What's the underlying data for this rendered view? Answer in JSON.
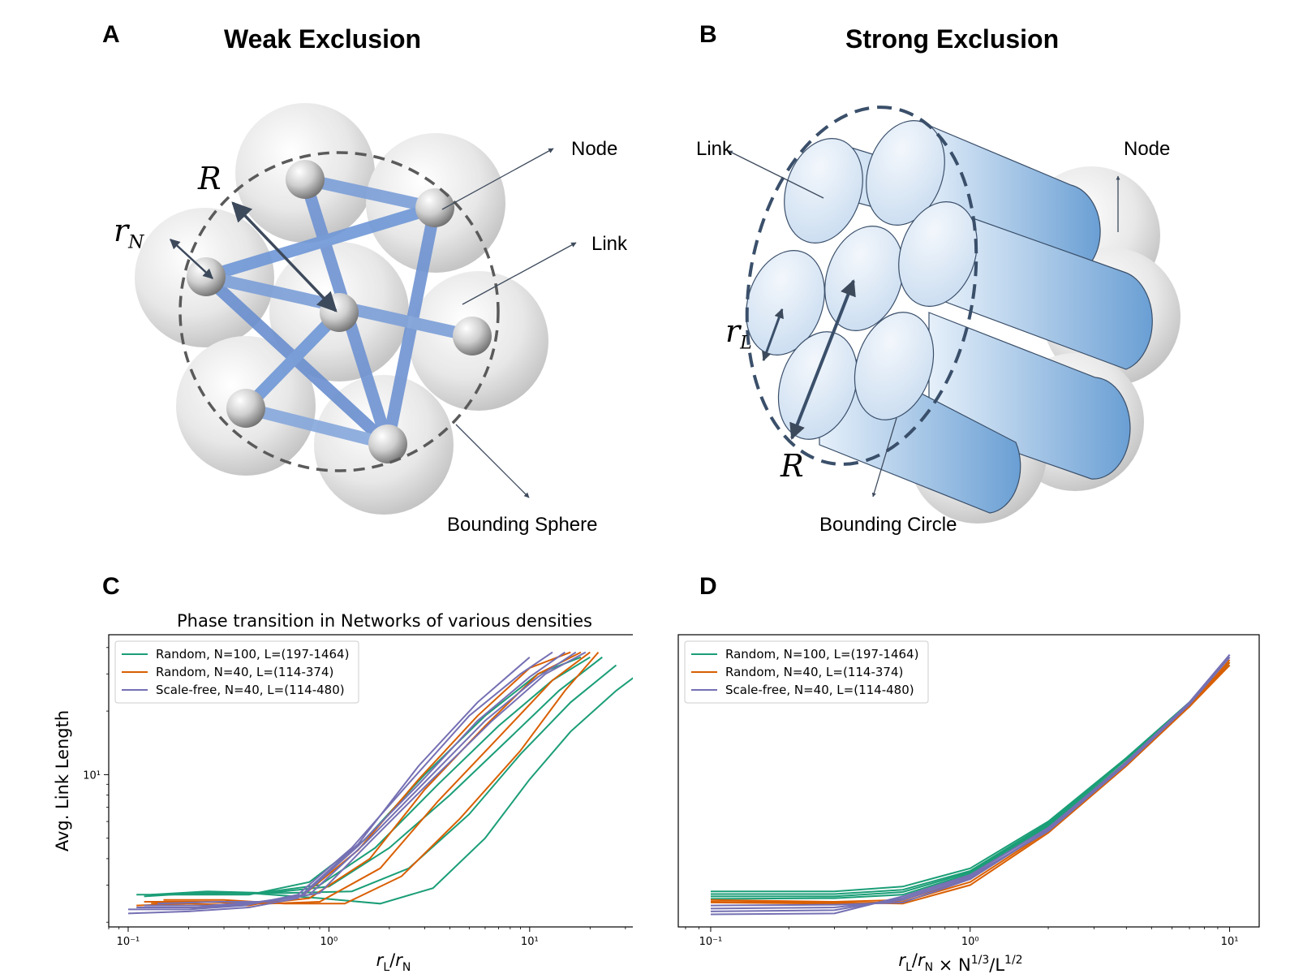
{
  "panels": {
    "a": {
      "letter": "A",
      "title": "Weak Exclusion",
      "labels": {
        "node": "Node",
        "link": "Link",
        "bounding": "Bounding Sphere",
        "R": "R",
        "rN_base": "r",
        "rN_sub": "N"
      }
    },
    "b": {
      "letter": "B",
      "title": "Strong Exclusion",
      "labels": {
        "node": "Node",
        "link": "Link",
        "bounding": "Bounding Circle",
        "R": "R",
        "rL_base": "r",
        "rL_sub": "L"
      }
    },
    "c": {
      "letter": "C"
    },
    "d": {
      "letter": "D"
    }
  },
  "colors": {
    "random100": "#1b9e77",
    "random40": "#d95f02",
    "scalefree40": "#7570b3",
    "link_blue": "#6f97d6",
    "cylinder_blue": "#7aa8d8",
    "sphere_gray": "#d8d8d8"
  },
  "chart_data": [
    {
      "type": "line",
      "panel": "C",
      "title": "Phase transition in Networks of various densities",
      "xlabel": "r_L/r_N",
      "ylabel": "Avg. Link Length",
      "xscale": "log",
      "yscale": "log",
      "xlim": [
        0.08,
        55
      ],
      "ylim": [
        1.9,
        46
      ],
      "xticks": [
        "10⁻¹",
        "10⁰",
        "10¹"
      ],
      "yticks": [
        "10¹"
      ],
      "legend_position": "top-left",
      "series": [
        {
          "name": "Random, N=100, L=(197-1464)",
          "group": "random100",
          "x": [
            0.2,
            0.4,
            0.9,
            1.8,
            3.3,
            6,
            10,
            16,
            27,
            45
          ],
          "y": [
            2.75,
            2.75,
            2.6,
            2.45,
            2.9,
            5.0,
            9.5,
            16,
            25,
            36
          ],
          "legend": true
        },
        {
          "group": "random100",
          "x": [
            0.15,
            0.3,
            0.6,
            1.3,
            2.5,
            5,
            9,
            16,
            27
          ],
          "y": [
            2.7,
            2.75,
            2.75,
            2.8,
            3.6,
            6.5,
            12.5,
            22,
            33
          ]
        },
        {
          "group": "random100",
          "x": [
            0.13,
            0.25,
            0.5,
            1.0,
            2.0,
            4,
            8,
            14,
            23
          ],
          "y": [
            2.7,
            2.8,
            2.75,
            2.95,
            4.5,
            8,
            15,
            25,
            36
          ]
        },
        {
          "group": "random100",
          "x": [
            0.12,
            0.22,
            0.45,
            0.9,
            1.7,
            3.5,
            7,
            13,
            20
          ],
          "y": [
            2.65,
            2.75,
            2.75,
            3.0,
            4.5,
            9,
            17,
            28,
            36
          ]
        },
        {
          "group": "random100",
          "x": [
            0.11,
            0.2,
            0.4,
            0.8,
            1.5,
            3,
            6,
            11,
            18
          ],
          "y": [
            2.7,
            2.7,
            2.7,
            3.1,
            4.9,
            10,
            19,
            30,
            36
          ]
        },
        {
          "name": "Random, N=40, L=(114-374)",
          "group": "random40",
          "x": [
            0.15,
            0.3,
            0.6,
            1.2,
            2.3,
            4.5,
            9,
            15,
            22
          ],
          "y": [
            2.55,
            2.55,
            2.45,
            2.45,
            3.3,
            6.2,
            13,
            25,
            38
          ]
        },
        {
          "group": "random40",
          "x": [
            0.13,
            0.25,
            0.5,
            0.9,
            1.8,
            3.5,
            7,
            13,
            20
          ],
          "y": [
            2.45,
            2.5,
            2.45,
            2.5,
            3.6,
            7.5,
            15,
            28,
            38
          ]
        },
        {
          "group": "random40",
          "x": [
            0.12,
            0.22,
            0.45,
            0.8,
            1.6,
            3,
            6,
            11,
            18
          ],
          "y": [
            2.5,
            2.5,
            2.45,
            2.6,
            4.0,
            8.5,
            17,
            30,
            38
          ]
        },
        {
          "group": "random40",
          "x": [
            0.11,
            0.2,
            0.4,
            0.75,
            1.4,
            2.8,
            5.5,
            10,
            16
          ],
          "y": [
            2.4,
            2.45,
            2.4,
            2.7,
            4.4,
            9.5,
            19,
            32,
            38
          ]
        },
        {
          "name": "Scale-free, N=40, L=(114-480)",
          "group": "scalefree40",
          "x": [
            0.1,
            0.2,
            0.4,
            0.7,
            1.4,
            2.8,
            5.5,
            10
          ],
          "y": [
            2.2,
            2.25,
            2.35,
            2.6,
            4.7,
            11,
            22,
            36
          ]
        },
        {
          "group": "scalefree40",
          "x": [
            0.1,
            0.2,
            0.38,
            0.7,
            1.3,
            2.6,
            5,
            9,
            13
          ],
          "y": [
            2.3,
            2.3,
            2.4,
            2.7,
            4.5,
            9.5,
            19,
            30,
            38
          ]
        },
        {
          "group": "scalefree40",
          "x": [
            0.11,
            0.22,
            0.42,
            0.75,
            1.4,
            2.8,
            5.5,
            10,
            15
          ],
          "y": [
            2.35,
            2.35,
            2.45,
            2.7,
            4.6,
            9,
            18,
            29,
            38
          ]
        },
        {
          "group": "scalefree40",
          "x": [
            0.12,
            0.25,
            0.45,
            0.8,
            1.5,
            3,
            6,
            11,
            17
          ],
          "y": [
            2.4,
            2.4,
            2.5,
            2.7,
            4.7,
            9.2,
            18,
            29,
            38
          ]
        },
        {
          "group": "scalefree40",
          "x": [
            0.14,
            0.28,
            0.5,
            0.9,
            1.6,
            3.2,
            6.5,
            12,
            19
          ],
          "y": [
            2.45,
            2.5,
            2.5,
            2.75,
            4.8,
            9.3,
            18,
            30,
            38
          ]
        }
      ]
    },
    {
      "type": "line",
      "panel": "D",
      "title": "",
      "xlabel": "r_L/r_N × N^{1/3}/L^{1/2}",
      "ylabel": "",
      "xscale": "log",
      "yscale": "log",
      "xlim": [
        0.075,
        13
      ],
      "ylim": [
        1.9,
        46
      ],
      "xticks": [
        "10⁻¹",
        "10⁰",
        "10¹"
      ],
      "legend_position": "top-left",
      "series": [
        {
          "name": "Random, N=100, L=(197-1464)",
          "group": "random100",
          "x": [
            0.1,
            0.3,
            0.55,
            1.0,
            2,
            4,
            7,
            10
          ],
          "y": [
            2.8,
            2.8,
            2.95,
            3.6,
            6.0,
            12,
            22,
            33
          ],
          "legend": true
        },
        {
          "group": "random100",
          "x": [
            0.1,
            0.3,
            0.55,
            1.0,
            2,
            4,
            7,
            10
          ],
          "y": [
            2.72,
            2.72,
            2.85,
            3.5,
            5.9,
            12,
            22,
            33
          ]
        },
        {
          "group": "random100",
          "x": [
            0.1,
            0.3,
            0.55,
            1.0,
            2,
            4,
            7,
            10
          ],
          "y": [
            2.65,
            2.65,
            2.78,
            3.45,
            5.8,
            11.8,
            22,
            34
          ]
        },
        {
          "group": "random100",
          "x": [
            0.1,
            0.3,
            0.55,
            1.0,
            2,
            4,
            7,
            10
          ],
          "y": [
            2.58,
            2.6,
            2.7,
            3.4,
            5.7,
            11.5,
            21.5,
            34
          ]
        },
        {
          "name": "Random, N=40, L=(114-374)",
          "group": "random40",
          "x": [
            0.1,
            0.3,
            0.55,
            1.0,
            2,
            4,
            7,
            10
          ],
          "y": [
            2.55,
            2.5,
            2.55,
            3.2,
            5.5,
            11.5,
            21,
            33
          ]
        },
        {
          "group": "random40",
          "x": [
            0.1,
            0.3,
            0.55,
            1.0,
            2,
            4,
            7,
            10
          ],
          "y": [
            2.48,
            2.45,
            2.5,
            3.1,
            5.4,
            11.5,
            21,
            34
          ]
        },
        {
          "group": "random40",
          "x": [
            0.1,
            0.3,
            0.55,
            1.0,
            2,
            4,
            7,
            10
          ],
          "y": [
            2.5,
            2.48,
            2.45,
            3.0,
            5.3,
            11,
            21,
            35
          ]
        },
        {
          "name": "Scale-free, N=40, L=(114-480)",
          "group": "scalefree40",
          "x": [
            0.1,
            0.3,
            0.55,
            1.0,
            2,
            4,
            7,
            10
          ],
          "y": [
            2.4,
            2.42,
            2.48,
            3.2,
            5.5,
            11.5,
            22,
            37
          ]
        },
        {
          "group": "scalefree40",
          "x": [
            0.1,
            0.3,
            0.55,
            1.0,
            2,
            4,
            7,
            10
          ],
          "y": [
            2.32,
            2.35,
            2.55,
            3.25,
            5.5,
            11.3,
            22,
            36
          ]
        },
        {
          "group": "scalefree40",
          "x": [
            0.1,
            0.3,
            0.55,
            1.0,
            2,
            4,
            7,
            10
          ],
          "y": [
            2.25,
            2.28,
            2.6,
            3.3,
            5.4,
            11.2,
            21.5,
            36
          ]
        },
        {
          "group": "scalefree40",
          "x": [
            0.1,
            0.3,
            0.55,
            1.0,
            2,
            4,
            7,
            10
          ],
          "y": [
            2.18,
            2.2,
            2.65,
            3.35,
            5.6,
            11.4,
            22,
            37
          ]
        }
      ]
    }
  ]
}
